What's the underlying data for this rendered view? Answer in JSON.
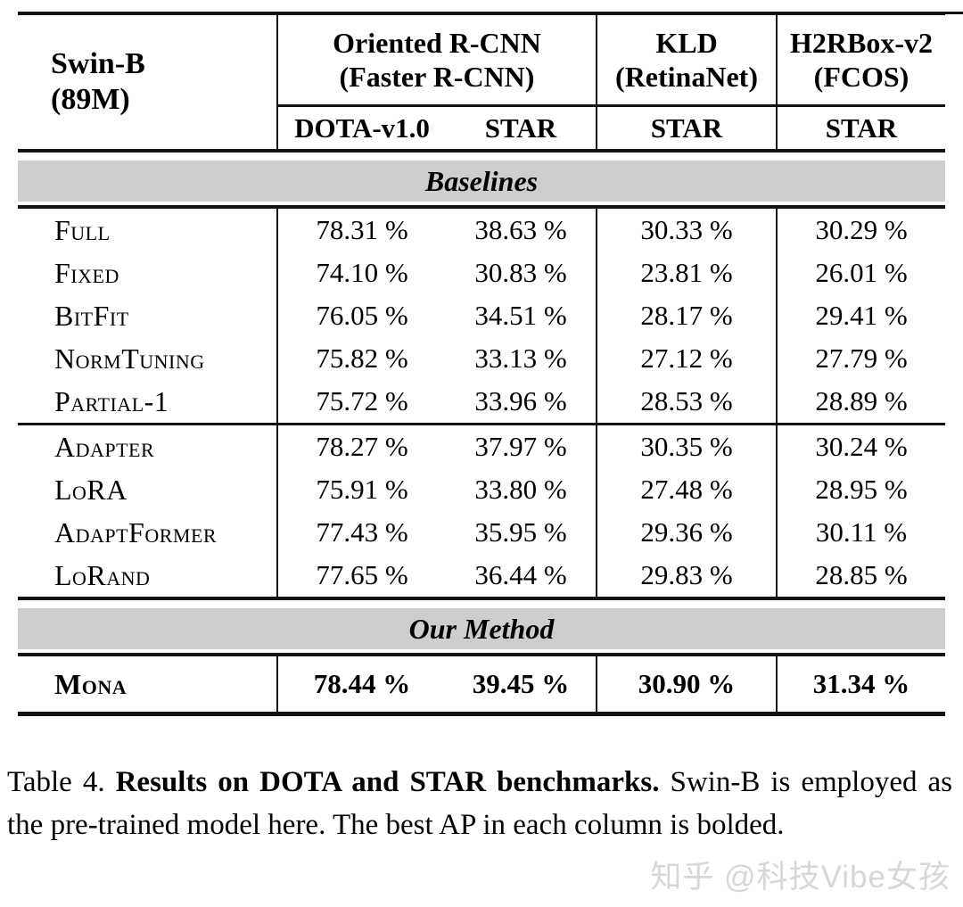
{
  "header": {
    "row_label_title": "Swin-B",
    "row_label_sub": "(89M)",
    "groups": [
      {
        "title": "Oriented R-CNN",
        "subtitle": "(Faster R-CNN)",
        "columns": [
          "DOTA-v1.0",
          "STAR"
        ]
      },
      {
        "title": "KLD",
        "subtitle": "(RetinaNet)",
        "columns": [
          "STAR"
        ]
      },
      {
        "title": "H2RBox-v2",
        "subtitle": "(FCOS)",
        "columns": [
          "STAR"
        ]
      }
    ]
  },
  "sections": [
    {
      "header": "Baselines",
      "rows": [
        {
          "label": "Full",
          "values": [
            "78.31 %",
            "38.63 %",
            "30.33 %",
            "30.29 %"
          ]
        },
        {
          "label": "Fixed",
          "values": [
            "74.10 %",
            "30.83 %",
            "23.81 %",
            "26.01 %"
          ]
        },
        {
          "label": "BitFit",
          "values": [
            "76.05 %",
            "34.51 %",
            "28.17 %",
            "29.41 %"
          ]
        },
        {
          "label": "NormTuning",
          "values": [
            "75.82 %",
            "33.13 %",
            "27.12 %",
            "27.79 %"
          ]
        },
        {
          "label": "Partial-1",
          "values": [
            "75.72 %",
            "33.96 %",
            "28.53 %",
            "28.89 %"
          ]
        }
      ]
    },
    {
      "rows": [
        {
          "label": "Adapter",
          "values": [
            "78.27 %",
            "37.97 %",
            "30.35 %",
            "30.24 %"
          ]
        },
        {
          "label": "LoRA",
          "values": [
            "75.91 %",
            "33.80 %",
            "27.48 %",
            "28.95 %"
          ]
        },
        {
          "label": "AdaptFormer",
          "values": [
            "77.43 %",
            "35.95 %",
            "29.36 %",
            "30.11 %"
          ]
        },
        {
          "label": "LoRand",
          "values": [
            "77.65 %",
            "36.44 %",
            "29.83 %",
            "28.85 %"
          ]
        }
      ]
    },
    {
      "header": "Our Method",
      "rows": [
        {
          "label": "Mona",
          "values": [
            "78.44 %",
            "39.45 %",
            "30.90 %",
            "31.34 %"
          ],
          "bold": true
        }
      ]
    }
  ],
  "caption": {
    "prefix": "Table 4.",
    "bold": "Results on DOTA and STAR benchmarks.",
    "rest": "Swin-B is employed as the pre-trained model here. The best AP in each column is bolded."
  },
  "watermark": "知乎 @科技Vibe女孩",
  "colors": {
    "section_bar": "#cecece",
    "rule": "#141414",
    "watermark": "#d7d7d7"
  }
}
